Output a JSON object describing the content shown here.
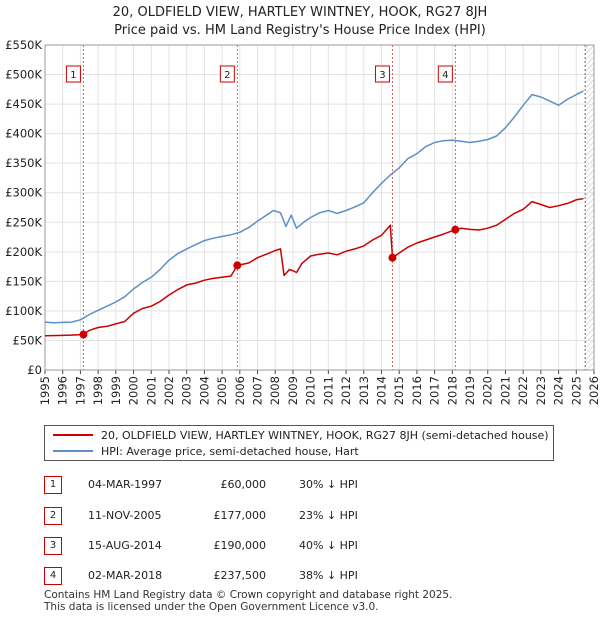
{
  "chart_data": {
    "type": "line",
    "title": "20, OLDFIELD VIEW, HARTLEY WINTNEY, HOOK, RG27 8JH",
    "subtitle": "Price paid vs. HM Land Registry's House Price Index (HPI)",
    "xlabel": "",
    "ylabel": "",
    "xlim": [
      1995,
      2026
    ],
    "ylim": [
      0,
      550000
    ],
    "grid": true,
    "x_ticks": [
      "1995",
      "1996",
      "1997",
      "1998",
      "1999",
      "2000",
      "2001",
      "2002",
      "2003",
      "2004",
      "2005",
      "2006",
      "2007",
      "2008",
      "2009",
      "2010",
      "2011",
      "2012",
      "2013",
      "2014",
      "2015",
      "2016",
      "2017",
      "2018",
      "2019",
      "2020",
      "2021",
      "2022",
      "2023",
      "2024",
      "2025",
      "2026"
    ],
    "y_ticks": [
      {
        "value": 0,
        "label": "£0"
      },
      {
        "value": 50000,
        "label": "£50K"
      },
      {
        "value": 100000,
        "label": "£100K"
      },
      {
        "value": 150000,
        "label": "£150K"
      },
      {
        "value": 200000,
        "label": "£200K"
      },
      {
        "value": 250000,
        "label": "£250K"
      },
      {
        "value": 300000,
        "label": "£300K"
      },
      {
        "value": 350000,
        "label": "£350K"
      },
      {
        "value": 400000,
        "label": "£400K"
      },
      {
        "value": 450000,
        "label": "£450K"
      },
      {
        "value": 500000,
        "label": "£500K"
      },
      {
        "value": 550000,
        "label": "£550K"
      }
    ],
    "series": [
      {
        "name": "20, OLDFIELD VIEW, HARTLEY WINTNEY, HOOK, RG27 8JH (semi-detached house)",
        "color": "#cc0000",
        "x": [
          1995.0,
          1996.0,
          1996.5,
          1997.17,
          1997.5,
          1998.0,
          1998.5,
          1999.0,
          1999.5,
          2000.0,
          2000.5,
          2001.0,
          2001.5,
          2002.0,
          2002.5,
          2003.0,
          2003.5,
          2004.0,
          2004.5,
          2005.0,
          2005.5,
          2005.86,
          2006.5,
          2007.0,
          2007.5,
          2008.0,
          2008.3,
          2008.5,
          2008.8,
          2009.0,
          2009.2,
          2009.5,
          2010.0,
          2010.5,
          2011.0,
          2011.5,
          2012.0,
          2012.5,
          2013.0,
          2013.5,
          2014.0,
          2014.5,
          2014.62,
          2015.0,
          2015.5,
          2016.0,
          2016.5,
          2017.0,
          2017.5,
          2018.17,
          2018.5,
          2019.0,
          2019.5,
          2020.0,
          2020.5,
          2021.0,
          2021.5,
          2022.0,
          2022.5,
          2023.0,
          2023.5,
          2024.0,
          2024.5,
          2025.0,
          2025.4
        ],
        "y": [
          58000,
          58500,
          59000,
          60000,
          67000,
          72000,
          74000,
          78000,
          82000,
          96000,
          104000,
          108000,
          116000,
          127000,
          136000,
          144000,
          147000,
          152000,
          155000,
          157000,
          159000,
          177000,
          181000,
          190000,
          196000,
          202000,
          205000,
          160000,
          170000,
          168000,
          165000,
          180000,
          193000,
          196000,
          198000,
          195000,
          201000,
          205000,
          210000,
          220000,
          228000,
          245000,
          190000,
          198000,
          208000,
          215000,
          220000,
          225000,
          230000,
          237500,
          240000,
          238000,
          237000,
          240000,
          245000,
          255000,
          265000,
          272000,
          285000,
          280000,
          275000,
          278000,
          282000,
          288000,
          290000
        ]
      },
      {
        "name": "HPI: Average price, semi-detached house, Hart",
        "color": "#5b8fc9",
        "x": [
          1995.0,
          1995.5,
          1996.0,
          1996.5,
          1997.0,
          1997.5,
          1998.0,
          1998.5,
          1999.0,
          1999.5,
          2000.0,
          2000.5,
          2001.0,
          2001.5,
          2002.0,
          2002.5,
          2003.0,
          2003.5,
          2004.0,
          2004.5,
          2005.0,
          2005.5,
          2006.0,
          2006.5,
          2007.0,
          2007.5,
          2007.9,
          2008.3,
          2008.6,
          2008.9,
          2009.2,
          2009.6,
          2010.0,
          2010.5,
          2011.0,
          2011.5,
          2012.0,
          2012.5,
          2013.0,
          2013.5,
          2014.0,
          2014.5,
          2015.0,
          2015.5,
          2016.0,
          2016.5,
          2017.0,
          2017.5,
          2018.0,
          2018.5,
          2019.0,
          2019.5,
          2020.0,
          2020.5,
          2021.0,
          2021.5,
          2022.0,
          2022.5,
          2023.0,
          2023.5,
          2024.0,
          2024.5,
          2025.0,
          2025.4
        ],
        "y": [
          81000,
          80000,
          80500,
          81000,
          85000,
          94000,
          101000,
          108000,
          115000,
          124000,
          137000,
          148000,
          157000,
          170000,
          186000,
          197000,
          205000,
          212000,
          219000,
          223000,
          226000,
          229000,
          233000,
          241000,
          252000,
          262000,
          270000,
          266000,
          243000,
          262000,
          240000,
          250000,
          258000,
          266000,
          270000,
          265000,
          270000,
          276000,
          283000,
          300000,
          316000,
          330000,
          342000,
          358000,
          366000,
          378000,
          385000,
          388000,
          389000,
          387000,
          385000,
          387000,
          390000,
          396000,
          410000,
          428000,
          448000,
          466000,
          462000,
          455000,
          448000,
          458000,
          466000,
          472000
        ]
      }
    ],
    "annotations": [
      {
        "id": "1",
        "x": 1997.17,
        "y": 60000
      },
      {
        "id": "2",
        "x": 2005.86,
        "y": 177000
      },
      {
        "id": "3",
        "x": 2014.62,
        "y": 190000
      },
      {
        "id": "4",
        "x": 2018.17,
        "y": 237500
      }
    ],
    "hatch_from_year": 2025.5
  },
  "legend": {
    "property_label": "20, OLDFIELD VIEW, HARTLEY WINTNEY, HOOK, RG27 8JH (semi-detached house)",
    "hpi_label": "HPI: Average price, semi-detached house, Hart",
    "property_color": "#cc0000",
    "hpi_color": "#5b8fc9"
  },
  "events": [
    {
      "id": "1",
      "date": "04-MAR-1997",
      "price": "£60,000",
      "hpi": "30% ↓ HPI"
    },
    {
      "id": "2",
      "date": "11-NOV-2005",
      "price": "£177,000",
      "hpi": "23% ↓ HPI"
    },
    {
      "id": "3",
      "date": "15-AUG-2014",
      "price": "£190,000",
      "hpi": "40% ↓ HPI"
    },
    {
      "id": "4",
      "date": "02-MAR-2018",
      "price": "£237,500",
      "hpi": "38% ↓ HPI"
    }
  ],
  "footer": {
    "line1": "Contains HM Land Registry data © Crown copyright and database right 2025.",
    "line2": "This data is licensed under the Open Government Licence v3.0."
  }
}
